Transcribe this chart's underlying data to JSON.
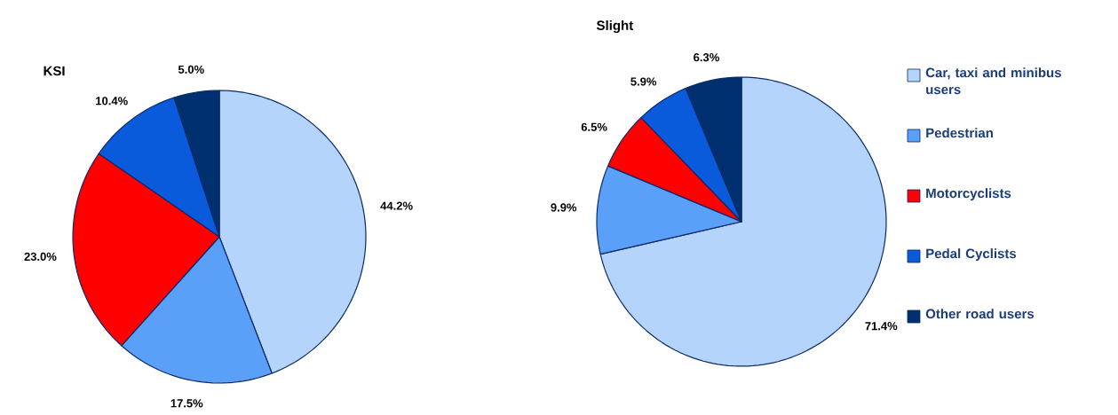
{
  "chart_data": [
    {
      "type": "pie",
      "title": "KSI",
      "categories": [
        null,
        null,
        null,
        null,
        null
      ],
      "values": [
        44.2,
        17.5,
        23.0,
        10.4,
        5.0
      ],
      "value_labels": [
        "44.2%",
        "17.5%",
        "23.0%",
        "10.4%",
        "5.0%"
      ],
      "colors": [
        "#b4d4fc",
        "#5aa0f8",
        "#ff0000",
        "#0a5adc",
        "#003070"
      ],
      "legend": false
    },
    {
      "type": "pie",
      "title": "Slight",
      "categories": [
        "Car, taxi and minibus users",
        "Pedestrian",
        "Motorcyclists",
        "Pedal Cyclists",
        "Other road users"
      ],
      "values": [
        71.4,
        9.9,
        6.5,
        5.9,
        6.3
      ],
      "value_labels": [
        "71.4%",
        "9.9%",
        "6.5%",
        "5.9%",
        "6.3%"
      ],
      "colors": [
        "#b4d4fc",
        "#5aa0f8",
        "#ff0000",
        "#0a5adc",
        "#003070"
      ],
      "legend": "right"
    }
  ]
}
